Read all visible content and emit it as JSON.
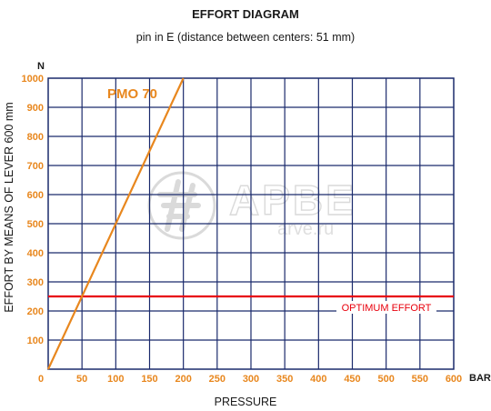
{
  "chart_data": {
    "type": "line",
    "title": "EFFORT DIAGRAM",
    "subtitle": "pin in E (distance between centers: 51 mm)",
    "xlabel": "PRESSURE",
    "ylabel": "EFFORT BY MEANS OF LEVER 600 mm",
    "x_unit": "BAR",
    "y_unit": "N",
    "xlim": [
      0,
      600
    ],
    "ylim": [
      0,
      1000
    ],
    "x_ticks": [
      0,
      50,
      100,
      150,
      200,
      250,
      300,
      350,
      400,
      450,
      500,
      550,
      600
    ],
    "y_ticks": [
      100,
      200,
      300,
      400,
      500,
      600,
      700,
      800,
      900,
      1000
    ],
    "grid": true,
    "series": [
      {
        "name": "PMO 70",
        "color": "#e8871e",
        "x": [
          0,
          200
        ],
        "y": [
          0,
          1000
        ]
      }
    ],
    "reference_lines": [
      {
        "label": "OPTIMUM EFFORT",
        "y": 250,
        "color": "#e8000d"
      }
    ],
    "colors": {
      "grid": "#1a2a6c",
      "tick_labels": "#e8871e"
    }
  },
  "watermark": {
    "text": "АРВЕ",
    "subtext": "arve.ru"
  }
}
